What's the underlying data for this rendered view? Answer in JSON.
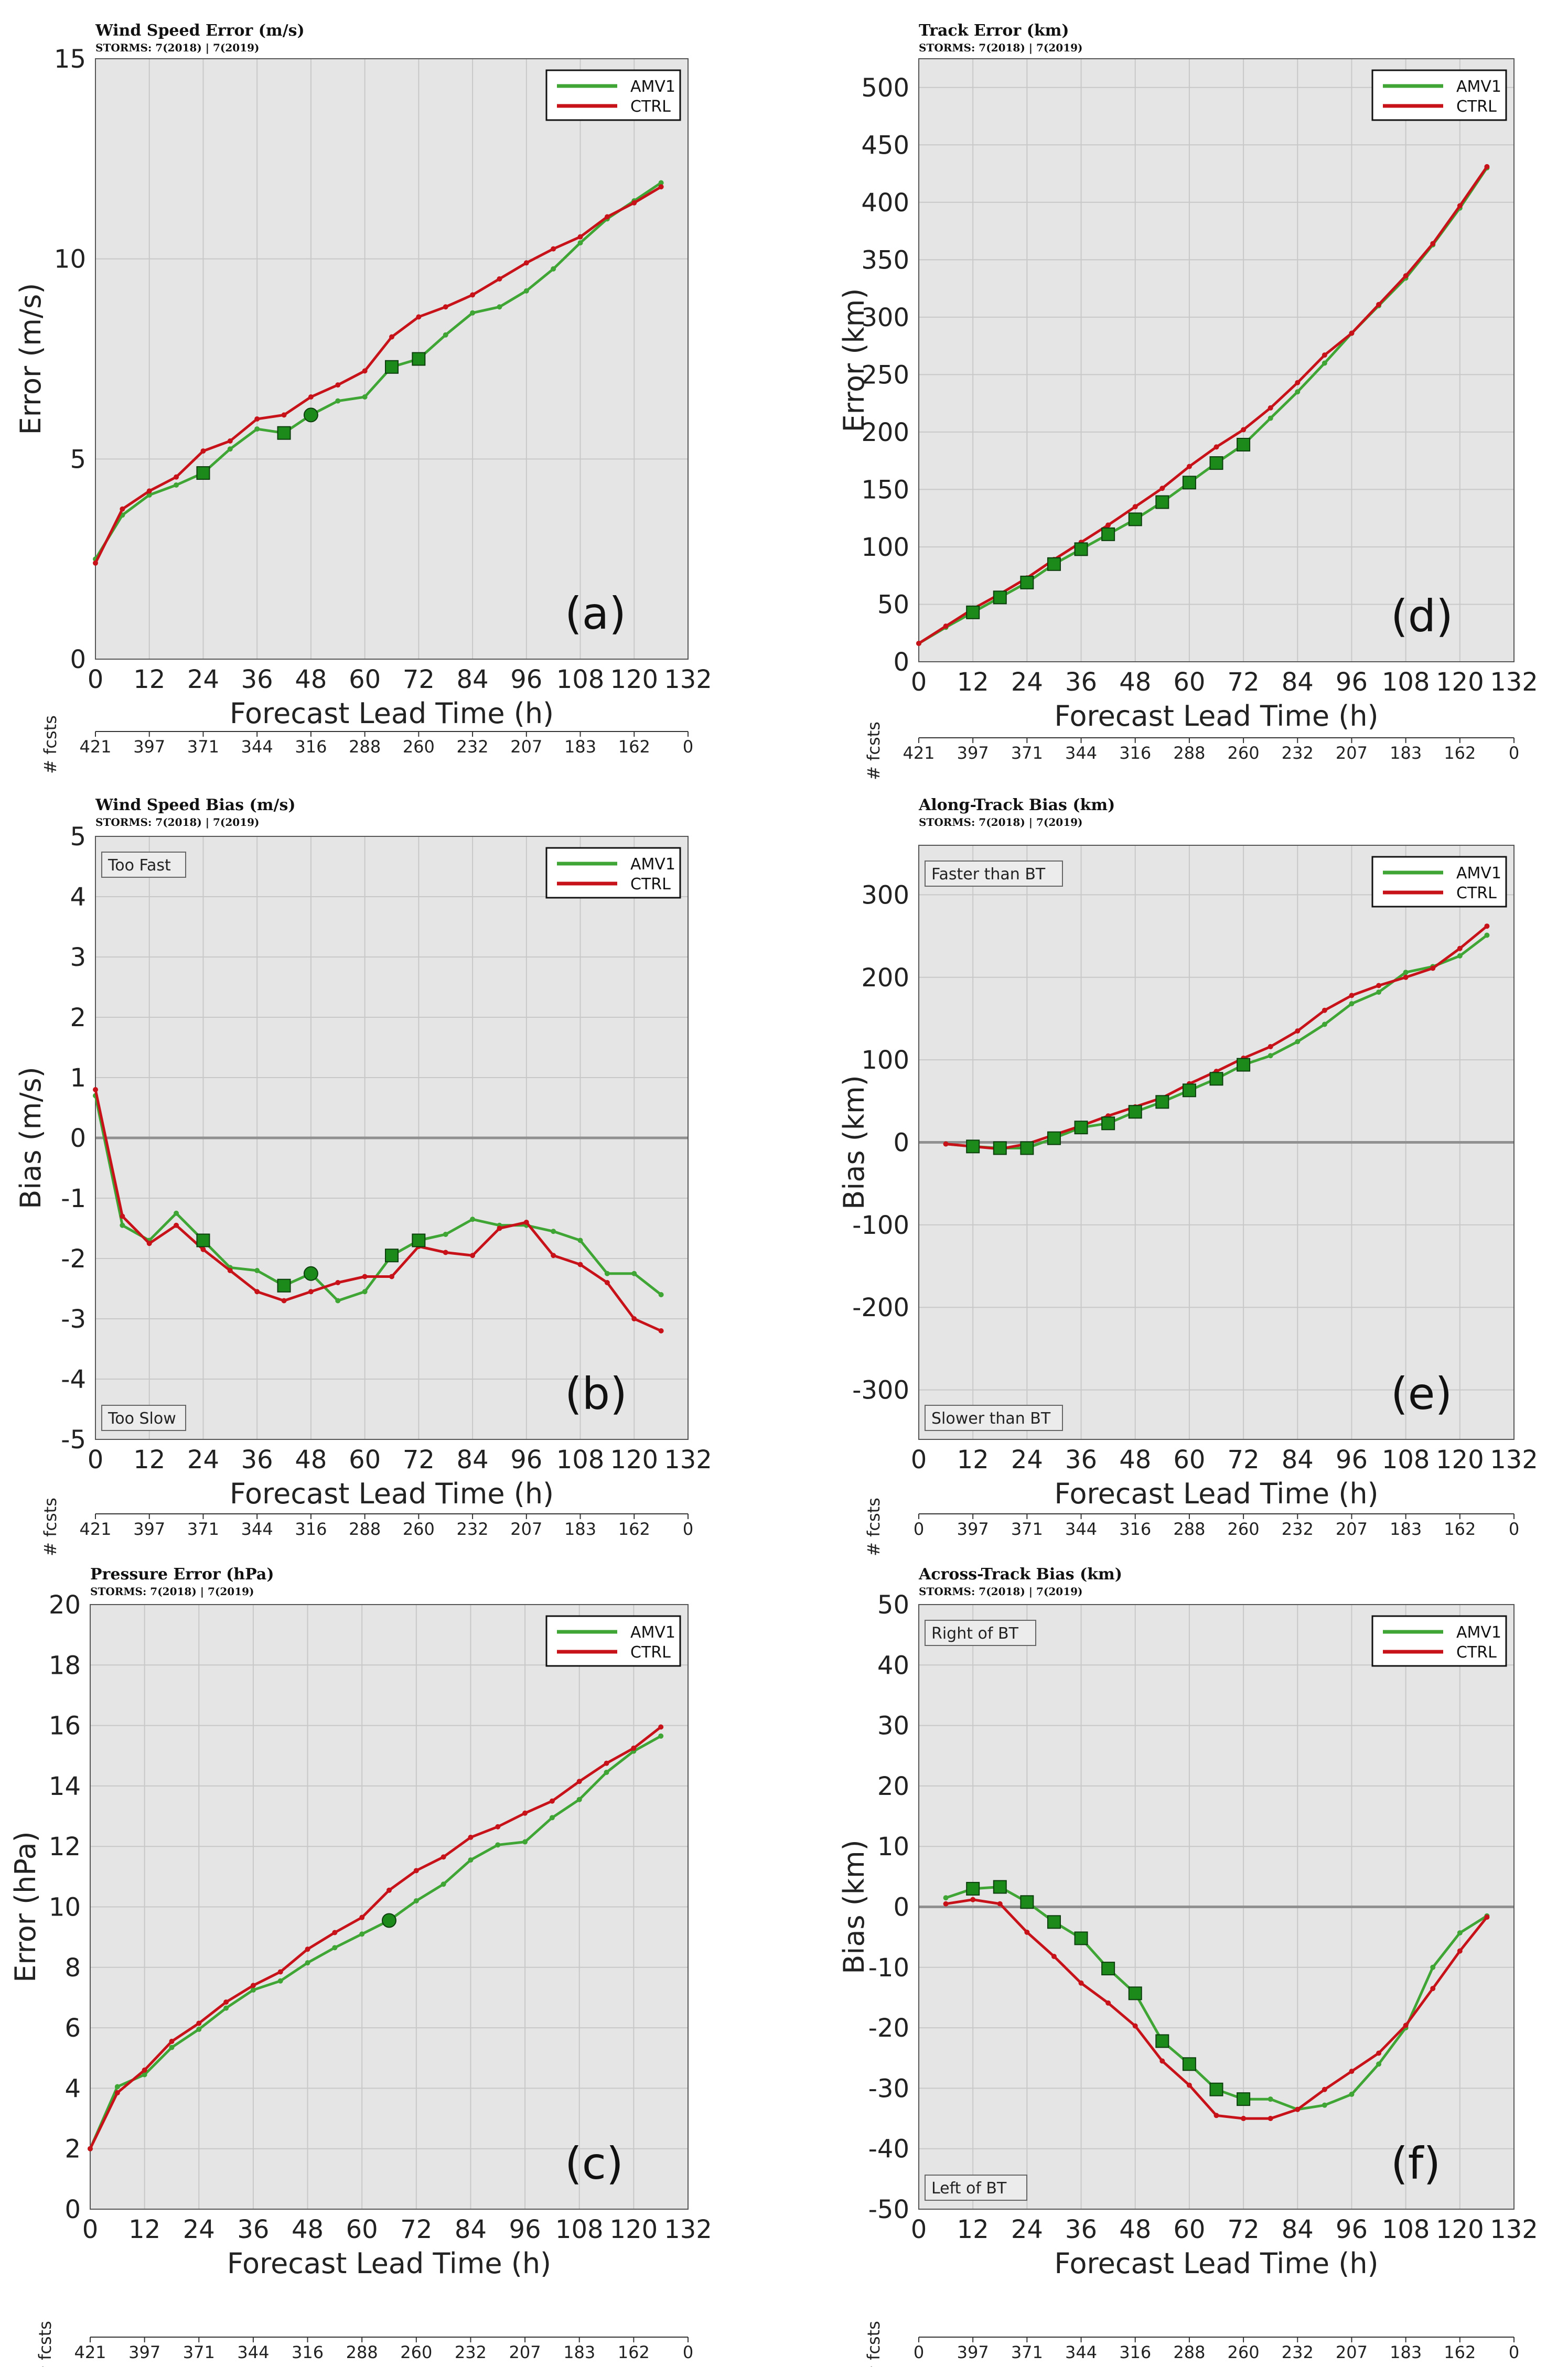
{
  "colors": {
    "amv1": "#3fa535",
    "ctrl": "#c8121a",
    "panel_bg": "#e5e5e5",
    "grid": "#c8c8c8",
    "zero_line": "#909090",
    "marker_fill": "#1b8a1b"
  },
  "common": {
    "xlabel": "Forecast Lead Time (h)",
    "fcsts_label": "# fcsts",
    "storms": "STORMS: 7(2018) | 7(2019)",
    "x_ticks": [
      0,
      12,
      24,
      36,
      48,
      60,
      72,
      84,
      96,
      108,
      120,
      132
    ],
    "legend": [
      "AMV1",
      "CTRL"
    ]
  },
  "chart_data": [
    {
      "panel": "a",
      "type": "line",
      "title": "Wind Speed Error (m/s)",
      "ylabel": "Error (m/s)",
      "xlim": [
        0,
        132
      ],
      "ylim": [
        0,
        15
      ],
      "y_ticks": [
        0,
        5,
        10,
        15
      ],
      "panel_label": "(a)",
      "fcsts": [
        "421",
        "397",
        "371",
        "344",
        "316",
        "288",
        "260",
        "232",
        "207",
        "183",
        "162",
        "0"
      ],
      "zero_line": false,
      "corner_top": "",
      "corner_bottom": "",
      "x": [
        0,
        6,
        12,
        18,
        24,
        30,
        36,
        42,
        48,
        54,
        60,
        66,
        72,
        78,
        84,
        90,
        96,
        102,
        108,
        114,
        120,
        126
      ],
      "series": [
        {
          "name": "AMV1",
          "values": [
            2.5,
            3.6,
            4.1,
            4.35,
            4.65,
            5.25,
            5.75,
            5.65,
            6.1,
            6.45,
            6.55,
            7.3,
            7.5,
            8.1,
            8.65,
            8.8,
            9.2,
            9.75,
            10.4,
            11.0,
            11.45,
            11.9
          ]
        },
        {
          "name": "CTRL",
          "values": [
            2.4,
            3.75,
            4.2,
            4.55,
            5.2,
            5.45,
            6.0,
            6.1,
            6.55,
            6.85,
            7.2,
            8.05,
            8.55,
            8.8,
            9.1,
            9.5,
            9.9,
            10.25,
            10.55,
            11.05,
            11.4,
            11.8
          ]
        }
      ],
      "sig_squares": [
        24,
        42,
        66,
        72
      ],
      "sig_circles": [
        48
      ]
    },
    {
      "panel": "d",
      "type": "line",
      "title": "Track Error (km)",
      "ylabel": "Error (km)",
      "xlim": [
        0,
        132
      ],
      "ylim": [
        0,
        525
      ],
      "y_ticks": [
        0,
        50,
        100,
        150,
        200,
        250,
        300,
        350,
        400,
        450,
        500
      ],
      "panel_label": "(d)",
      "fcsts": [
        "421",
        "397",
        "371",
        "344",
        "316",
        "288",
        "260",
        "232",
        "207",
        "183",
        "162",
        "0"
      ],
      "zero_line": false,
      "corner_top": "",
      "corner_bottom": "",
      "x": [
        0,
        6,
        12,
        18,
        24,
        30,
        36,
        42,
        48,
        54,
        60,
        66,
        72,
        78,
        84,
        90,
        96,
        102,
        108,
        114,
        120,
        126
      ],
      "series": [
        {
          "name": "AMV1",
          "values": [
            16,
            30,
            43,
            56,
            69,
            85,
            98,
            111,
            124,
            139,
            156,
            173,
            189,
            212,
            235,
            260,
            286,
            310,
            334,
            363,
            395,
            430
          ]
        },
        {
          "name": "CTRL",
          "values": [
            16,
            31,
            46,
            59,
            73,
            89,
            104,
            119,
            135,
            151,
            170,
            187,
            202,
            221,
            243,
            267,
            286,
            311,
            336,
            364,
            397,
            431
          ]
        }
      ],
      "sig_squares": [
        12,
        18,
        24,
        30,
        36,
        42,
        48,
        54,
        60,
        66,
        72
      ],
      "sig_circles": []
    },
    {
      "panel": "b",
      "type": "line",
      "title": "Wind Speed Bias (m/s)",
      "ylabel": "Bias (m/s)",
      "xlim": [
        0,
        132
      ],
      "ylim": [
        -5,
        5
      ],
      "y_ticks": [
        -5,
        -4,
        -3,
        -2,
        -1,
        0,
        1,
        2,
        3,
        4,
        5
      ],
      "panel_label": "(b)",
      "fcsts": [
        "421",
        "397",
        "371",
        "344",
        "316",
        "288",
        "260",
        "232",
        "207",
        "183",
        "162",
        "0"
      ],
      "zero_line": true,
      "corner_top": "Too Fast",
      "corner_bottom": "Too Slow",
      "x": [
        0,
        6,
        12,
        18,
        24,
        30,
        36,
        42,
        48,
        54,
        60,
        66,
        72,
        78,
        84,
        90,
        96,
        102,
        108,
        114,
        120,
        126
      ],
      "series": [
        {
          "name": "AMV1",
          "values": [
            0.7,
            -1.45,
            -1.7,
            -1.25,
            -1.7,
            -2.15,
            -2.2,
            -2.45,
            -2.25,
            -2.7,
            -2.55,
            -1.95,
            -1.7,
            -1.6,
            -1.35,
            -1.45,
            -1.45,
            -1.55,
            -1.7,
            -2.25,
            -2.25,
            -2.6
          ]
        },
        {
          "name": "CTRL",
          "values": [
            0.8,
            -1.3,
            -1.75,
            -1.45,
            -1.85,
            -2.2,
            -2.55,
            -2.7,
            -2.55,
            -2.4,
            -2.3,
            -2.3,
            -1.8,
            -1.9,
            -1.95,
            -1.5,
            -1.4,
            -1.95,
            -2.1,
            -2.4,
            -3.0,
            -3.2
          ]
        }
      ],
      "sig_squares": [
        24,
        42,
        66,
        72
      ],
      "sig_circles": [
        48
      ]
    },
    {
      "panel": "e",
      "type": "line",
      "title": "Along-Track Bias (km)",
      "ylabel": "Bias (km)",
      "xlim": [
        0,
        132
      ],
      "ylim": [
        -360,
        360
      ],
      "y_ticks": [
        -300,
        -200,
        -100,
        0,
        100,
        200,
        300
      ],
      "panel_label": "(e)",
      "fcsts": [
        "0",
        "397",
        "371",
        "344",
        "316",
        "288",
        "260",
        "232",
        "207",
        "183",
        "162",
        "0"
      ],
      "zero_line": true,
      "corner_top": "Faster than BT",
      "corner_bottom": "Slower than BT",
      "x": [
        6,
        12,
        18,
        24,
        30,
        36,
        42,
        48,
        54,
        60,
        66,
        72,
        78,
        84,
        90,
        96,
        102,
        108,
        114,
        120,
        126
      ],
      "series": [
        {
          "name": "AMV1",
          "values": [
            -2,
            -5,
            -7,
            -7,
            5,
            18,
            23,
            37,
            49,
            63,
            77,
            94,
            105,
            122,
            143,
            168,
            182,
            206,
            213,
            226,
            251
          ]
        },
        {
          "name": "CTRL",
          "values": [
            -2,
            -5,
            -8,
            -2,
            9,
            20,
            32,
            43,
            54,
            71,
            86,
            102,
            116,
            135,
            160,
            178,
            190,
            200,
            211,
            235,
            262
          ]
        }
      ],
      "sig_squares": [
        12,
        18,
        24,
        30,
        36,
        42,
        48,
        54,
        60,
        66,
        72
      ],
      "sig_circles": []
    },
    {
      "panel": "c",
      "type": "line",
      "title": "Pressure Error (hPa)",
      "ylabel": "Error (hPa)",
      "xlim": [
        0,
        132
      ],
      "ylim": [
        0,
        20
      ],
      "y_ticks": [
        0,
        2,
        4,
        6,
        8,
        10,
        12,
        14,
        16,
        18,
        20
      ],
      "panel_label": "(c)",
      "fcsts": [
        "421",
        "397",
        "371",
        "344",
        "316",
        "288",
        "260",
        "232",
        "207",
        "183",
        "162",
        "0"
      ],
      "zero_line": false,
      "corner_top": "",
      "corner_bottom": "",
      "x": [
        0,
        6,
        12,
        18,
        24,
        30,
        36,
        42,
        48,
        54,
        60,
        66,
        72,
        78,
        84,
        90,
        96,
        102,
        108,
        114,
        120,
        126
      ],
      "series": [
        {
          "name": "AMV1",
          "values": [
            2.0,
            4.05,
            4.45,
            5.35,
            5.95,
            6.65,
            7.25,
            7.55,
            8.15,
            8.65,
            9.1,
            9.55,
            10.2,
            10.75,
            11.55,
            12.05,
            12.15,
            12.95,
            13.55,
            14.45,
            15.15,
            15.65
          ]
        },
        {
          "name": "CTRL",
          "values": [
            2.0,
            3.85,
            4.6,
            5.55,
            6.15,
            6.85,
            7.4,
            7.85,
            8.6,
            9.15,
            9.65,
            10.55,
            11.2,
            11.65,
            12.3,
            12.65,
            13.1,
            13.5,
            14.15,
            14.75,
            15.25,
            15.95
          ]
        }
      ],
      "sig_squares": [],
      "sig_circles": [
        66
      ]
    },
    {
      "panel": "f",
      "type": "line",
      "title": "Across-Track Bias (km)",
      "ylabel": "Bias (km)",
      "xlim": [
        0,
        132
      ],
      "ylim": [
        -50,
        50
      ],
      "y_ticks": [
        -50,
        -40,
        -30,
        -20,
        -10,
        0,
        10,
        20,
        30,
        40,
        50
      ],
      "panel_label": "(f)",
      "fcsts": [
        "0",
        "397",
        "371",
        "344",
        "316",
        "288",
        "260",
        "232",
        "207",
        "183",
        "162",
        "0"
      ],
      "zero_line": true,
      "corner_top": "Right of BT",
      "corner_bottom": "Left of BT",
      "x": [
        6,
        12,
        18,
        24,
        30,
        36,
        42,
        48,
        54,
        60,
        66,
        72,
        78,
        84,
        90,
        96,
        102,
        108,
        114,
        120,
        126
      ],
      "series": [
        {
          "name": "AMV1",
          "values": [
            1.5,
            3.0,
            3.3,
            0.8,
            -2.5,
            -5.2,
            -10.2,
            -14.3,
            -22.2,
            -26.0,
            -30.2,
            -31.8,
            -31.8,
            -33.5,
            -32.8,
            -31.0,
            -26.0,
            -20.0,
            -10.0,
            -4.3,
            -1.5
          ]
        },
        {
          "name": "CTRL",
          "values": [
            0.5,
            1.2,
            0.5,
            -4.2,
            -8.2,
            -12.6,
            -15.9,
            -19.7,
            -25.5,
            -29.5,
            -34.5,
            -35.0,
            -35.0,
            -33.5,
            -30.2,
            -27.2,
            -24.2,
            -19.6,
            -13.5,
            -7.3,
            -1.7
          ]
        }
      ],
      "sig_squares": [
        12,
        18,
        24,
        30,
        36,
        42,
        48,
        54,
        60,
        66,
        72
      ],
      "sig_circles": []
    }
  ]
}
